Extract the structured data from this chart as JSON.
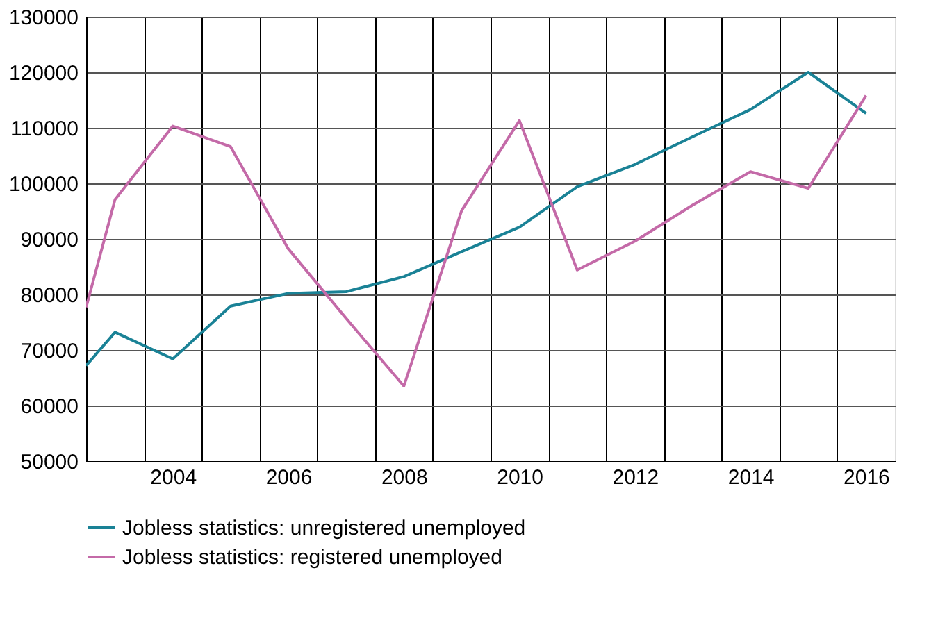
{
  "chart_data": {
    "type": "line",
    "x": [
      2002.5,
      2003,
      2004,
      2005,
      2006,
      2007,
      2008,
      2009,
      2010,
      2011,
      2012,
      2013,
      2014,
      2015,
      2016
    ],
    "series": [
      {
        "name": "Jobless statistics: unregistered unemployed",
        "color": "#1a8296",
        "values": [
          67200,
          73200,
          68400,
          77900,
          80200,
          80500,
          83200,
          87700,
          92100,
          99400,
          103400,
          108400,
          113300,
          120000,
          112600
        ]
      },
      {
        "name": "Jobless statistics: registered unemployed",
        "color": "#c46aa8",
        "values": [
          77700,
          97100,
          110300,
          106600,
          88200,
          75700,
          63500,
          95100,
          111300,
          84400,
          89600,
          96100,
          102100,
          99100,
          115800
        ]
      }
    ],
    "xlim": [
      2002.5,
      2016.5
    ],
    "xticks": [
      {
        "value": 2003.5,
        "label": null
      },
      2004,
      {
        "value": 2004.5,
        "label": null
      },
      {
        "value": 2005.5,
        "label": null
      },
      2006,
      {
        "value": 2006.5,
        "label": null
      },
      {
        "value": 2007.5,
        "label": null
      },
      2008,
      {
        "value": 2008.5,
        "label": null
      },
      {
        "value": 2009.5,
        "label": null
      },
      2010,
      {
        "value": 2010.5,
        "label": null
      },
      {
        "value": 2011.5,
        "label": null
      },
      2012,
      {
        "value": 2012.5,
        "label": null
      },
      {
        "value": 2013.5,
        "label": null
      },
      2014,
      {
        "value": 2014.5,
        "label": null
      },
      {
        "value": 2015.5,
        "label": null
      },
      2016
    ],
    "ylim": [
      50000,
      130000
    ],
    "yticks": [
      50000,
      60000,
      70000,
      80000,
      90000,
      100000,
      110000,
      120000,
      130000
    ],
    "grid": true,
    "legend": "bottom",
    "marker": "none",
    "line_style": "solid"
  }
}
